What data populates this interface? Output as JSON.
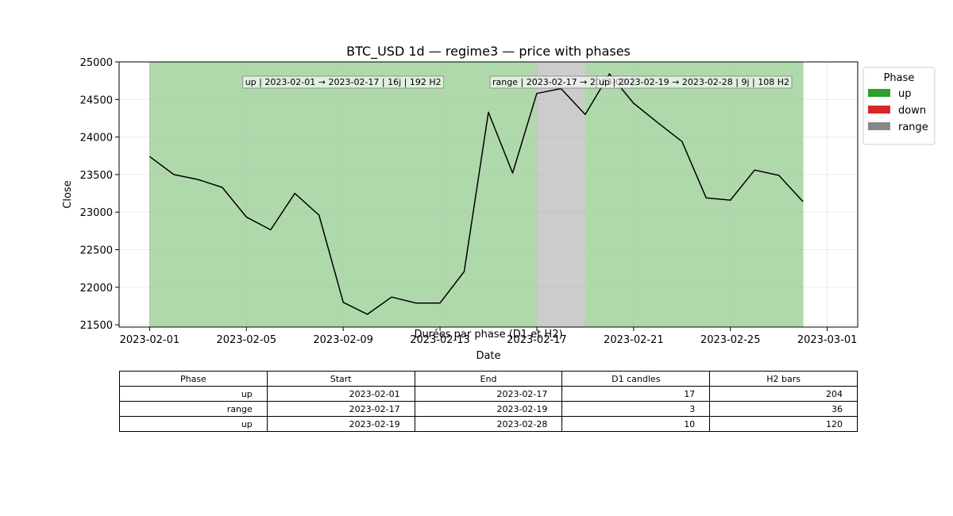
{
  "chart_data": {
    "type": "line",
    "title": "BTC_USD 1d — regime3 — price with phases",
    "xlabel": "Date",
    "ylabel": "Close",
    "xlim": [
      "2023-02-01",
      "2023-03-01"
    ],
    "ylim": [
      21500,
      25000
    ],
    "x_ticks": [
      "2023-02-01",
      "2023-02-05",
      "2023-02-09",
      "2023-02-13",
      "2023-02-17",
      "2023-02-21",
      "2023-02-25",
      "2023-03-01"
    ],
    "y_ticks": [
      21500,
      22000,
      22500,
      23000,
      23500,
      24000,
      24500,
      25000
    ],
    "grid": true,
    "series": [
      {
        "x": [
          "2023-02-01",
          "2023-02-02",
          "2023-02-03",
          "2023-02-04",
          "2023-02-05",
          "2023-02-06",
          "2023-02-07",
          "2023-02-08",
          "2023-02-09",
          "2023-02-10",
          "2023-02-11",
          "2023-02-12",
          "2023-02-13",
          "2023-02-14",
          "2023-02-15",
          "2023-02-16",
          "2023-02-17",
          "2023-02-18",
          "2023-02-19",
          "2023-02-20",
          "2023-02-21",
          "2023-02-22",
          "2023-02-23",
          "2023-02-24",
          "2023-02-25",
          "2023-02-26",
          "2023-02-27",
          "2023-02-28"
        ],
        "values": [
          23740,
          23500,
          23435,
          23330,
          22935,
          22765,
          23250,
          22960,
          21800,
          21640,
          21870,
          21790,
          21790,
          22210,
          24330,
          23520,
          24580,
          24645,
          24300,
          24840,
          24450,
          24190,
          23940,
          23190,
          23160,
          23560,
          23490,
          23140
        ],
        "color": "#000000"
      }
    ],
    "phases": [
      {
        "phase": "up",
        "start": "2023-02-01",
        "end": "2023-02-17",
        "color": "#b0d9ab",
        "label": "up | 2023-02-01 → 2023-02-17 | 16j | 192 H2"
      },
      {
        "phase": "range",
        "start": "2023-02-17",
        "end": "2023-02-19",
        "color": "#cccccc",
        "label": "range | 2023-02-17 → 2023-02-"
      },
      {
        "phase": "up",
        "start": "2023-02-19",
        "end": "2023-02-28",
        "color": "#b0d9ab",
        "label": "up | 2023-02-19 → 2023-02-28 | 9j | 108 H2"
      }
    ],
    "legend": {
      "title": "Phase",
      "placement": "outside-right",
      "entries": [
        {
          "label": "up",
          "color": "#2ca02c"
        },
        {
          "label": "down",
          "color": "#d62728"
        },
        {
          "label": "range",
          "color": "#888888"
        }
      ]
    }
  },
  "table": {
    "title": "Durées par phase (D1 et H2)",
    "headers": [
      "Phase",
      "Start",
      "End",
      "D1 candles",
      "H2 bars"
    ],
    "rows": [
      [
        "up",
        "2023-02-01",
        "2023-02-17",
        "17",
        "204"
      ],
      [
        "range",
        "2023-02-17",
        "2023-02-19",
        "3",
        "36"
      ],
      [
        "up",
        "2023-02-19",
        "2023-02-28",
        "10",
        "120"
      ]
    ]
  }
}
